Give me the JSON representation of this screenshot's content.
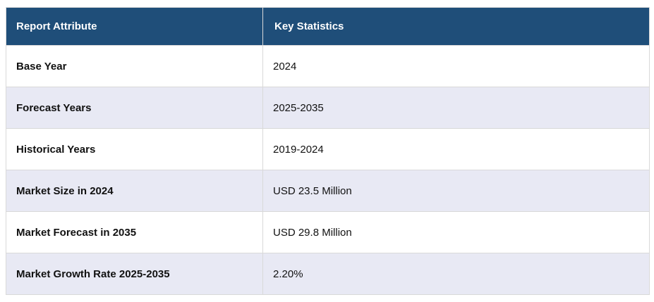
{
  "theme": {
    "header_bg": "#1f4e79",
    "header_text": "#ffffff",
    "row_alt_bg": "#e8e9f4",
    "row_bg": "#ffffff",
    "border_color": "#d9d9d9",
    "text_color": "#111111"
  },
  "table": {
    "headers": {
      "attribute": "Report Attribute",
      "statistics": "Key Statistics"
    },
    "rows": [
      {
        "attribute": "Base Year",
        "value": "2024"
      },
      {
        "attribute": "Forecast Years",
        "value": "2025-2035"
      },
      {
        "attribute": "Historical Years",
        "value": "2019-2024"
      },
      {
        "attribute": "Market Size in 2024",
        "value": "USD 23.5 Million"
      },
      {
        "attribute": "Market Forecast in 2035",
        "value": "USD 29.8 Million"
      },
      {
        "attribute": "Market Growth Rate 2025-2035",
        "value": "2.20%"
      }
    ]
  }
}
